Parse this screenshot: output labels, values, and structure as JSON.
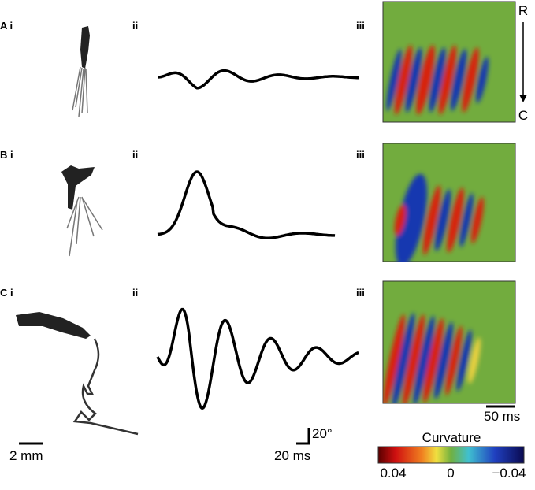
{
  "panels": [
    {
      "label": "A",
      "sub": [
        "i",
        "ii",
        "iii"
      ]
    },
    {
      "label": "B",
      "sub": [
        "i",
        "ii",
        "iii"
      ]
    },
    {
      "label": "C",
      "sub": [
        "i",
        "ii",
        "iii"
      ]
    }
  ],
  "orientation": {
    "rostral": "R",
    "caudal": "C"
  },
  "scale_bars": {
    "length": "2 mm",
    "time_trace": "20 ms",
    "angle": "20°",
    "time_map": "50 ms"
  },
  "colorbar": {
    "title": "Curvature",
    "ticks": [
      "0.04",
      "0",
      "−0.04"
    ]
  }
}
